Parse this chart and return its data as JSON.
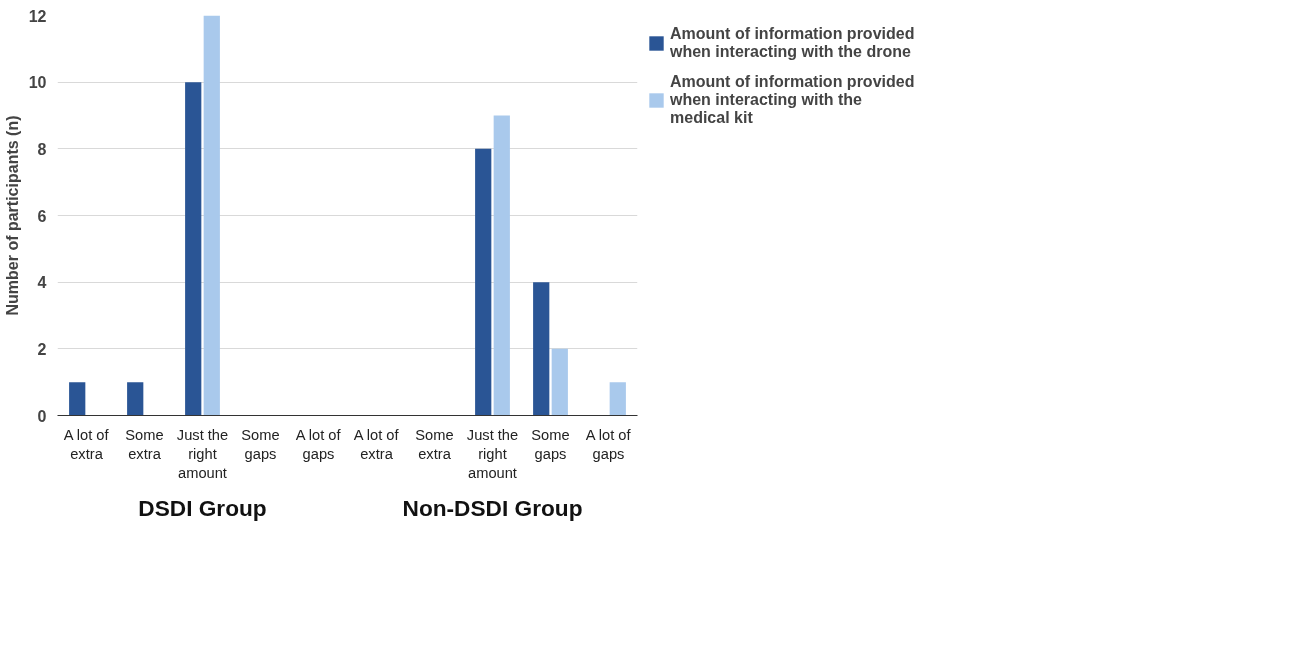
{
  "chart_data": {
    "type": "bar",
    "categories": [
      "A lot of extra",
      "Some extra",
      "Just the right amount",
      "Some gaps",
      "A lot of gaps",
      "A lot of extra",
      "Some extra",
      "Just the right amount",
      "Some gaps",
      "A lot of gaps"
    ],
    "series": [
      {
        "name": "Amount of information provided when interacting with the drone",
        "color": "#2a5595",
        "values": [
          1,
          1,
          10,
          0,
          0,
          0,
          0,
          8,
          4,
          0
        ]
      },
      {
        "name": "Amount of information provided when interacting with the medical kit",
        "color": "#a9c9ec",
        "values": [
          0,
          0,
          12,
          0,
          0,
          0,
          0,
          9,
          2,
          1
        ]
      }
    ],
    "ylabel": "Number of participants (n)",
    "ylim": [
      0,
      12
    ],
    "yticks": [
      0,
      2,
      4,
      6,
      8,
      10,
      12
    ],
    "grid": "y",
    "legend": "top right",
    "annotations": [
      "DSDI Group",
      "Non-DSDI Group"
    ]
  }
}
